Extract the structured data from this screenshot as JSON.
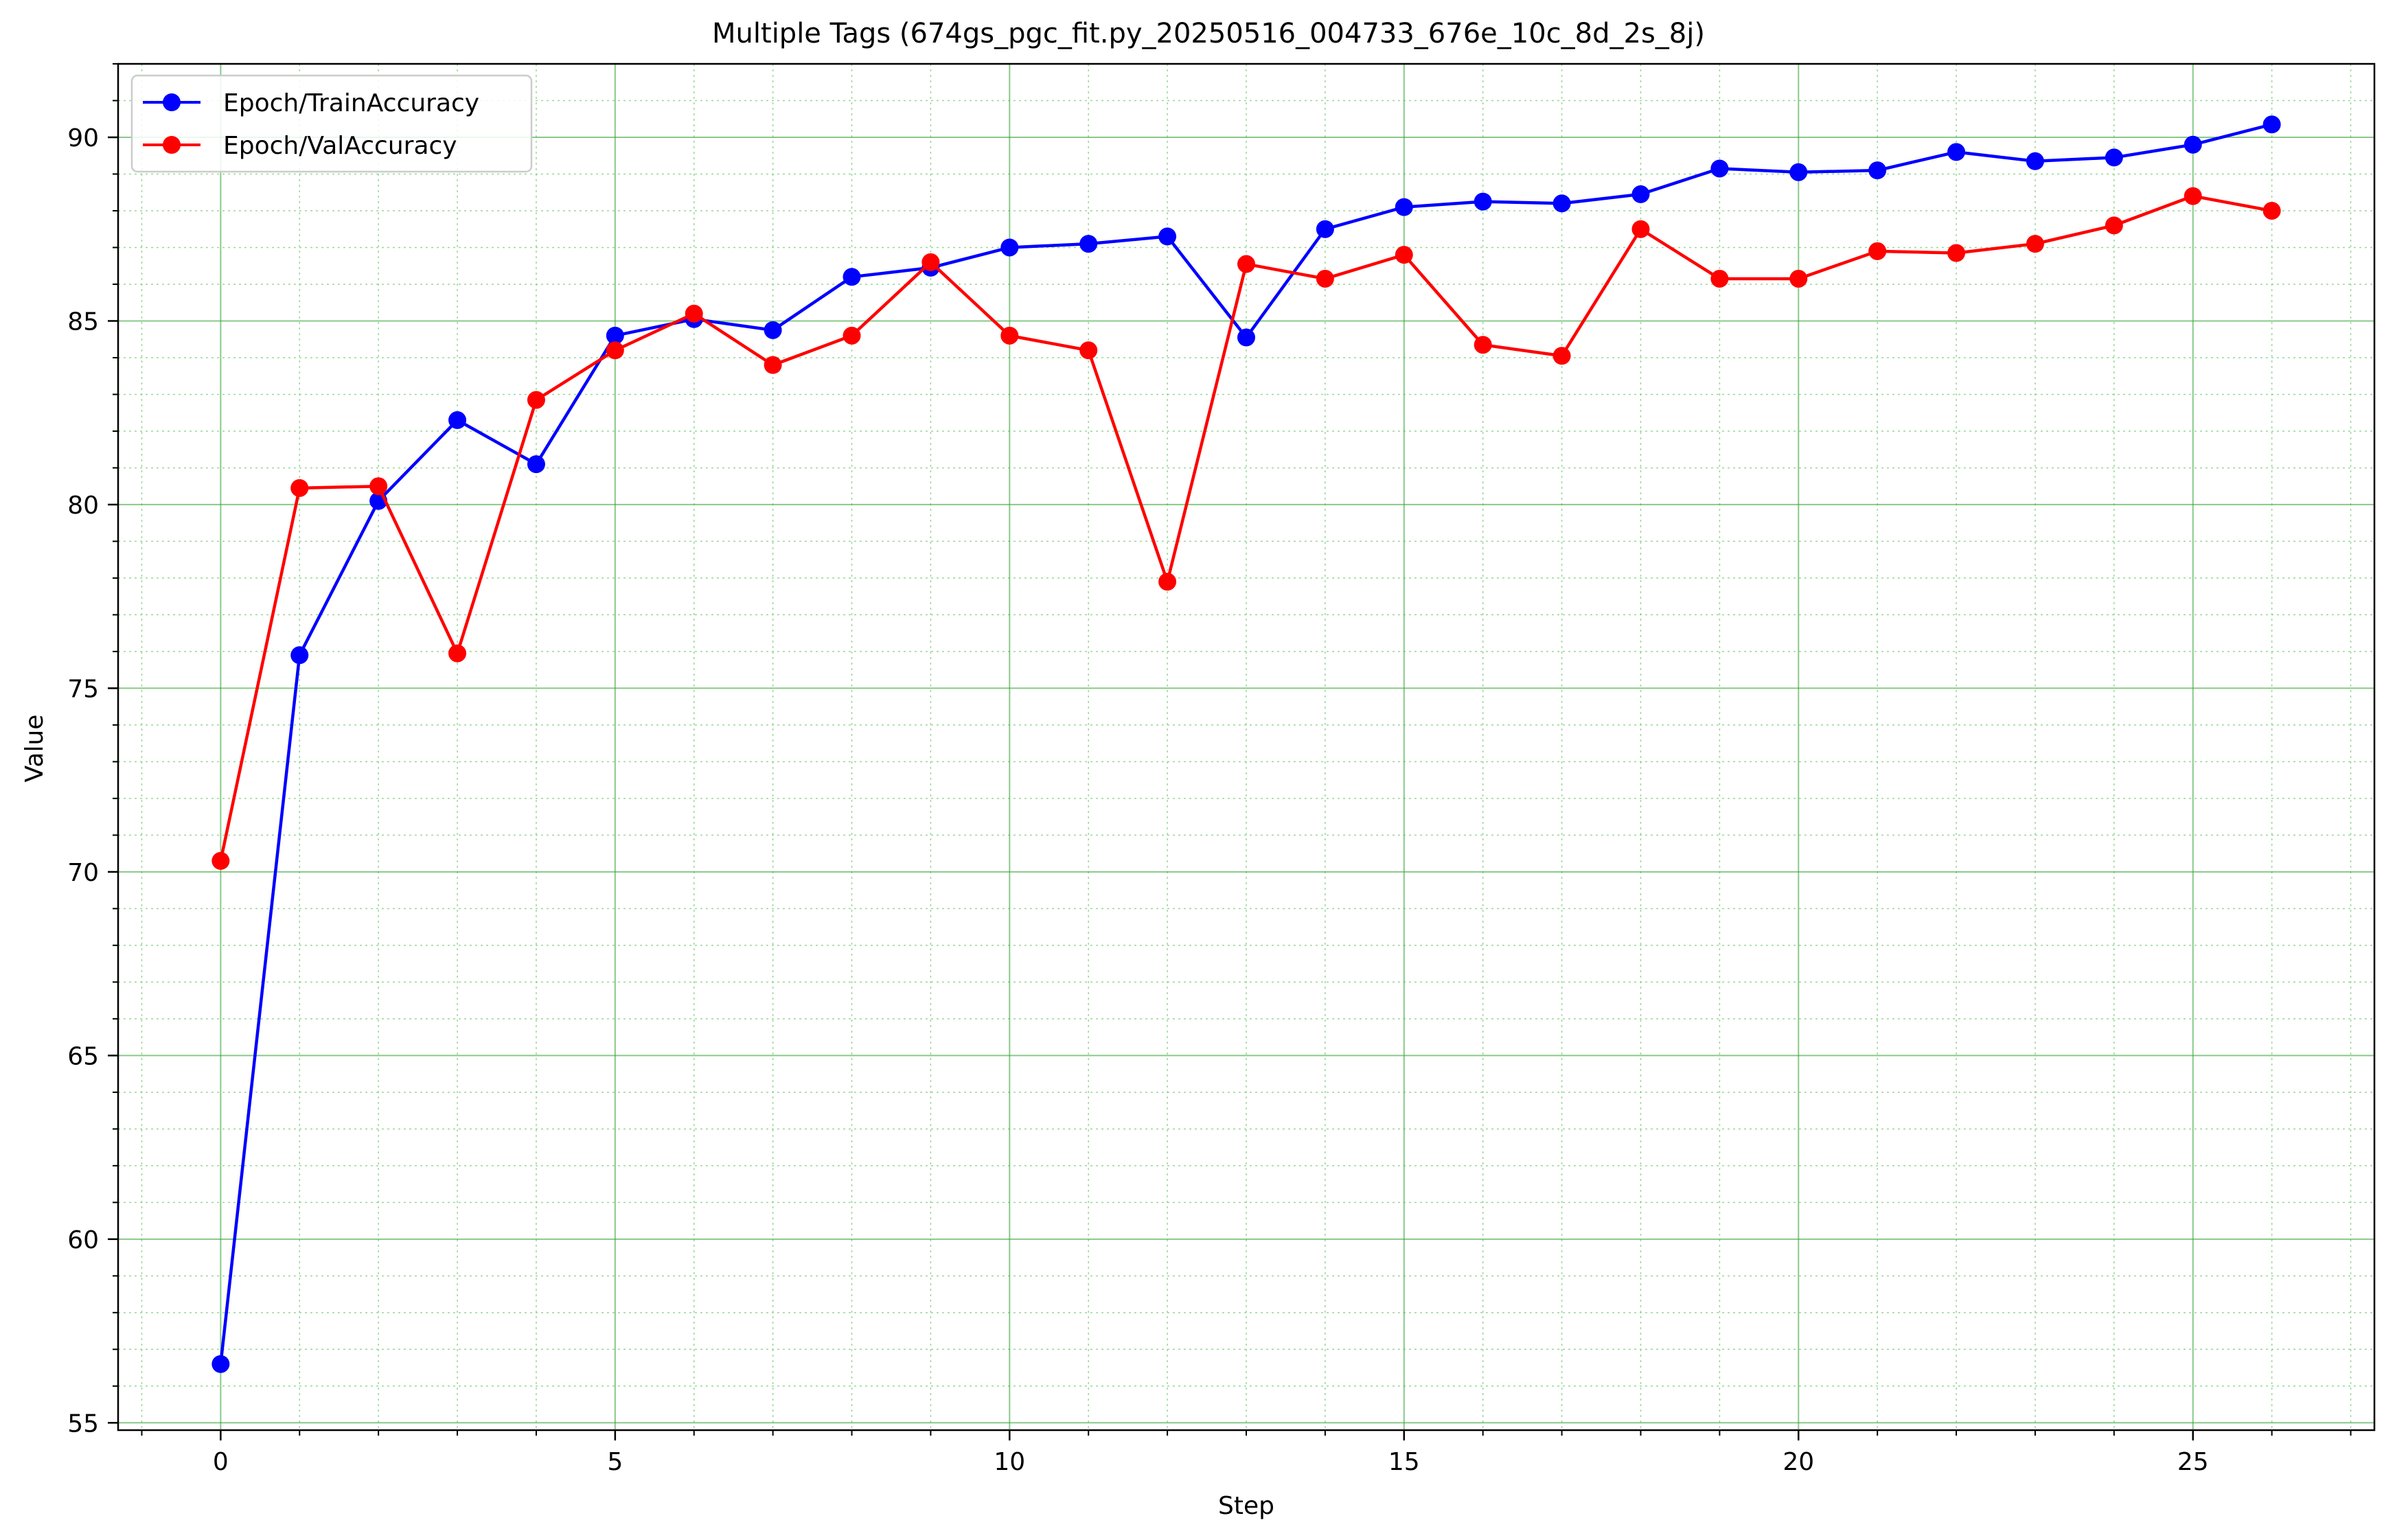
{
  "chart_data": {
    "type": "line",
    "title": "Multiple Tags (674gs_pgc_fit.py_20250516_004733_676e_10c_8d_2s_8j)",
    "xlabel": "Step",
    "ylabel": "Value",
    "xlim": [
      -1.3,
      27.3
    ],
    "ylim": [
      54.8,
      92.0
    ],
    "x_ticks": [
      0,
      5,
      10,
      15,
      20,
      25
    ],
    "y_ticks": [
      55,
      60,
      65,
      70,
      75,
      80,
      85,
      90
    ],
    "grid": true,
    "legend_position": "upper-left",
    "x": [
      0,
      1,
      2,
      3,
      4,
      5,
      6,
      7,
      8,
      9,
      10,
      11,
      12,
      13,
      14,
      15,
      16,
      17,
      18,
      19,
      20,
      21,
      22,
      23,
      24,
      25,
      26
    ],
    "series": [
      {
        "name": "Epoch/TrainAccuracy",
        "color": "#0000ff",
        "values": [
          56.6,
          75.9,
          80.1,
          82.3,
          81.1,
          84.6,
          85.05,
          84.75,
          86.2,
          86.45,
          87.0,
          87.1,
          87.3,
          84.55,
          87.5,
          88.1,
          88.25,
          88.2,
          88.45,
          89.15,
          89.05,
          89.1,
          89.6,
          89.35,
          89.45,
          89.8,
          90.35
        ]
      },
      {
        "name": "Epoch/ValAccuracy",
        "color": "#ff0000",
        "values": [
          70.3,
          80.45,
          80.5,
          75.95,
          82.85,
          84.2,
          85.2,
          83.8,
          84.6,
          86.6,
          84.6,
          84.2,
          77.9,
          86.55,
          86.15,
          86.8,
          84.35,
          84.05,
          87.5,
          86.15,
          86.15,
          86.9,
          86.85,
          87.1,
          87.6,
          88.4,
          88.0
        ]
      }
    ]
  }
}
